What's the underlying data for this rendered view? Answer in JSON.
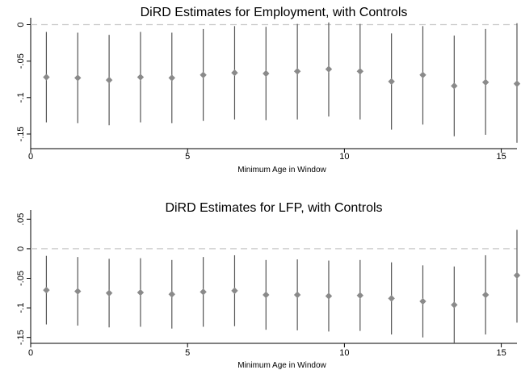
{
  "chart_data": [
    {
      "type": "scatter",
      "title": "DiRD Estimates for Employment, with Controls",
      "xlabel": "Minimum Age in Window",
      "ylabel": "",
      "xlim": [
        0,
        15.5
      ],
      "ylim": [
        -0.17,
        0.005
      ],
      "x_ticks": [
        0,
        5,
        10,
        15
      ],
      "x_tick_labels": [
        "0",
        "5",
        "10",
        "15"
      ],
      "y_ticks": [
        0,
        -0.05,
        -0.1,
        -0.15
      ],
      "y_tick_labels": [
        "0",
        "-.05",
        "-.1",
        "-.15"
      ],
      "reference_line": 0,
      "grid": false,
      "x": [
        0.5,
        1.5,
        2.5,
        3.5,
        4.5,
        5.5,
        6.5,
        7.5,
        8.5,
        9.5,
        10.5,
        11.5,
        12.5,
        13.5,
        14.5,
        15.5
      ],
      "estimates": [
        -0.072,
        -0.073,
        -0.076,
        -0.072,
        -0.073,
        -0.069,
        -0.066,
        -0.067,
        -0.064,
        -0.061,
        -0.064,
        -0.078,
        -0.069,
        -0.084,
        -0.079,
        -0.081
      ],
      "ci_low": [
        -0.134,
        -0.135,
        -0.138,
        -0.134,
        -0.135,
        -0.132,
        -0.13,
        -0.131,
        -0.13,
        -0.126,
        -0.13,
        -0.144,
        -0.137,
        -0.153,
        -0.151,
        -0.162
      ],
      "ci_high": [
        -0.01,
        -0.011,
        -0.014,
        -0.01,
        -0.011,
        -0.006,
        -0.002,
        -0.003,
        0.001,
        0.003,
        0.001,
        -0.012,
        -0.002,
        -0.015,
        -0.006,
        0.002
      ]
    },
    {
      "type": "scatter",
      "title": "DiRD Estimates for LFP, with Controls",
      "xlabel": "Minimum Age in Window",
      "ylabel": "",
      "xlim": [
        0,
        15.5
      ],
      "ylim": [
        -0.16,
        0.06
      ],
      "x_ticks": [
        0,
        5,
        10,
        15
      ],
      "x_tick_labels": [
        "0",
        "5",
        "10",
        "15"
      ],
      "y_ticks": [
        0.05,
        0,
        -0.05,
        -0.1,
        -0.15
      ],
      "y_tick_labels": [
        ".05",
        "0",
        "-.05",
        "-.1",
        "-.15"
      ],
      "reference_line": 0,
      "grid": false,
      "x": [
        0.5,
        1.5,
        2.5,
        3.5,
        4.5,
        5.5,
        6.5,
        7.5,
        8.5,
        9.5,
        10.5,
        11.5,
        12.5,
        13.5,
        14.5,
        15.5
      ],
      "estimates": [
        -0.07,
        -0.072,
        -0.075,
        -0.074,
        -0.077,
        -0.073,
        -0.071,
        -0.078,
        -0.078,
        -0.08,
        -0.079,
        -0.084,
        -0.089,
        -0.095,
        -0.078,
        -0.045
      ],
      "ci_low": [
        -0.128,
        -0.13,
        -0.133,
        -0.132,
        -0.135,
        -0.132,
        -0.131,
        -0.137,
        -0.138,
        -0.14,
        -0.139,
        -0.145,
        -0.15,
        -0.16,
        -0.145,
        -0.125
      ],
      "ci_high": [
        -0.012,
        -0.014,
        -0.017,
        -0.016,
        -0.019,
        -0.014,
        -0.011,
        -0.019,
        -0.018,
        -0.02,
        -0.019,
        -0.023,
        -0.028,
        -0.03,
        -0.011,
        0.032
      ]
    }
  ]
}
